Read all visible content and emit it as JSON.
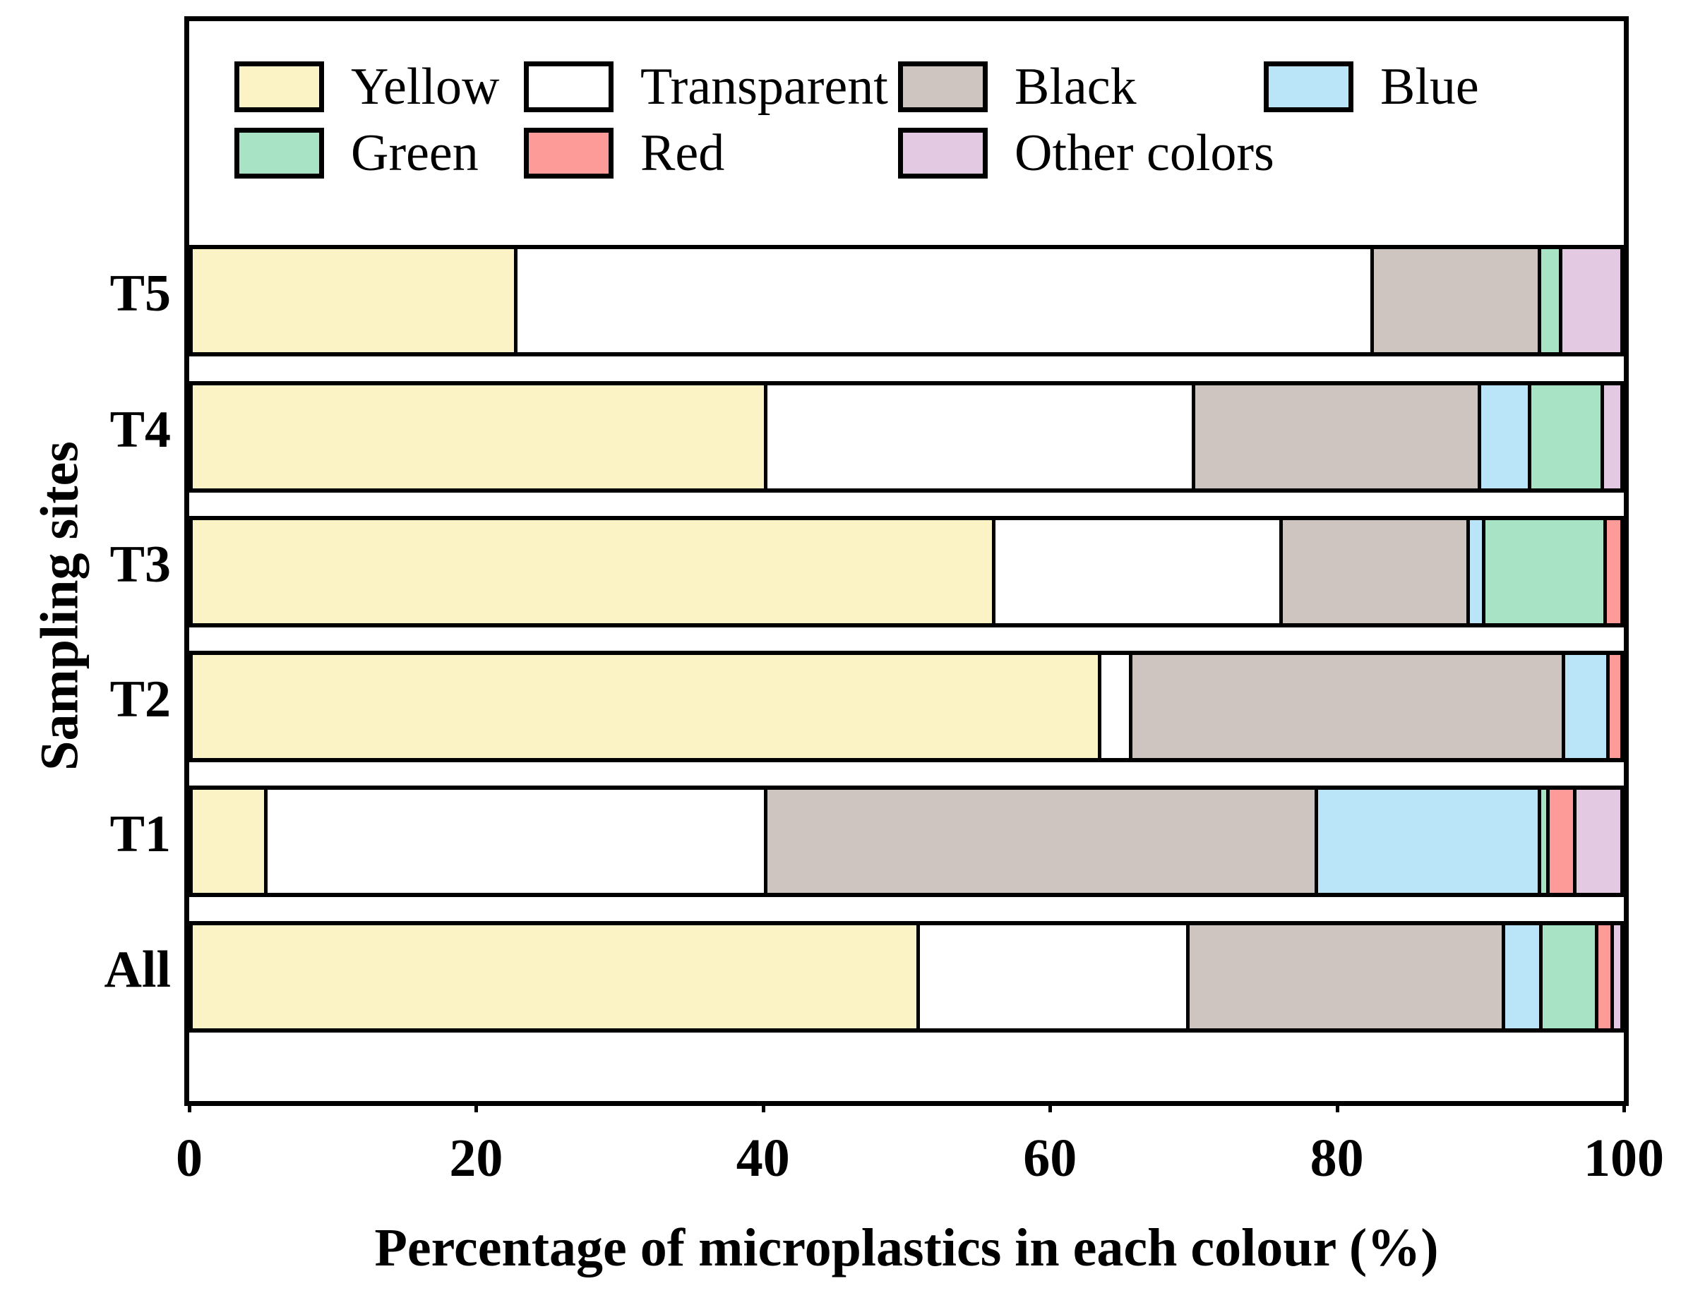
{
  "chart_data": {
    "type": "bar",
    "orientation": "horizontal",
    "stacked": true,
    "xlabel": "Percentage of microplastics in each colour (%)",
    "ylabel": "Sampling sites",
    "xlim": [
      0,
      100
    ],
    "xticks": [
      0,
      20,
      40,
      60,
      80,
      100
    ],
    "grid": false,
    "legend_position": "top-inside",
    "categories": [
      "T5",
      "T4",
      "T3",
      "T2",
      "T1",
      "All"
    ],
    "legend": [
      {
        "label": "Yellow",
        "color": "#FBF3C5"
      },
      {
        "label": "Transparent",
        "color": "#FFFFFF"
      },
      {
        "label": "Black",
        "color": "#CEC5C1"
      },
      {
        "label": "Blue",
        "color": "#BAE5F8"
      },
      {
        "label": "Green",
        "color": "#A9E3C6"
      },
      {
        "label": "Red",
        "color": "#FD9B98"
      },
      {
        "label": "Other colors",
        "color": "#E3C9E2"
      }
    ],
    "series": [
      {
        "name": "Yellow",
        "color": "#FBF3C5",
        "values": [
          22.5,
          40.0,
          56.0,
          63.4,
          5.0,
          50.7
        ]
      },
      {
        "name": "Transparent",
        "color": "#FFFFFF",
        "values": [
          60.0,
          30.0,
          20.1,
          2.2,
          35.0,
          18.9
        ]
      },
      {
        "name": "Black",
        "color": "#CEC5C1",
        "values": [
          11.7,
          20.0,
          13.1,
          30.3,
          38.6,
          22.1
        ]
      },
      {
        "name": "Blue",
        "color": "#BAE5F8",
        "values": [
          0,
          3.5,
          1.1,
          3.1,
          15.6,
          2.6
        ]
      },
      {
        "name": "Green",
        "color": "#A9E3C6",
        "values": [
          1.5,
          5.1,
          8.5,
          0,
          0.6,
          3.9
        ]
      },
      {
        "name": "Red",
        "color": "#FD9B98",
        "values": [
          0,
          0,
          1.2,
          1.0,
          1.9,
          1.1
        ]
      },
      {
        "name": "Other colors",
        "color": "#E3C9E2",
        "values": [
          4.3,
          1.4,
          0,
          0,
          3.3,
          0.7
        ]
      }
    ]
  }
}
